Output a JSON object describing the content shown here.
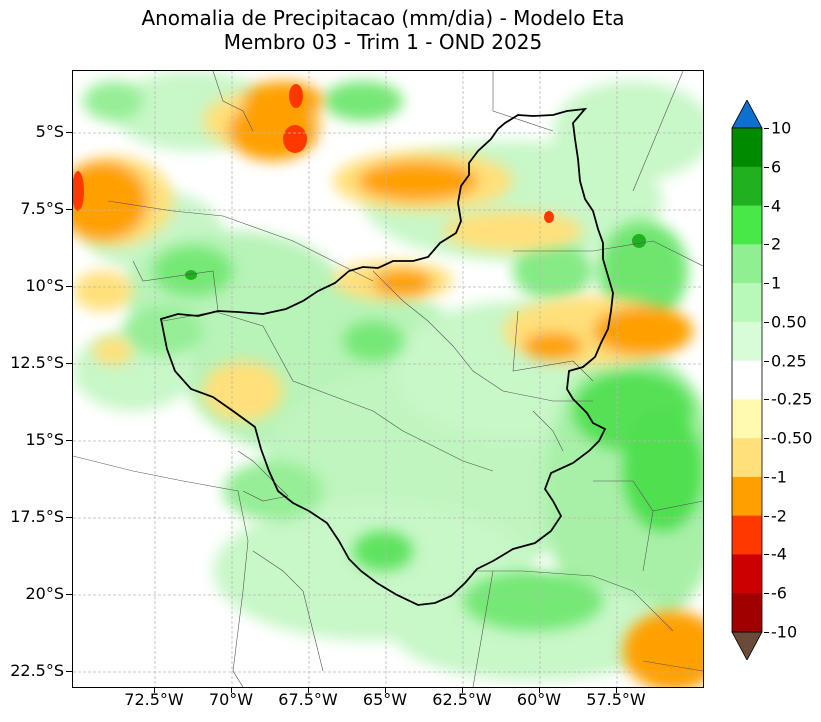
{
  "title": {
    "line1": "Anomalia de Precipitacao (mm/dia) - Modelo Eta",
    "line2": "Membro 03 - Trim 1 - OND 2025"
  },
  "axes": {
    "y_ticks": [
      "5°S",
      "7.5°S",
      "10°S",
      "12.5°S",
      "15°S",
      "17.5°S",
      "20°S",
      "22.5°S"
    ],
    "x_ticks": [
      "72.5°W",
      "70°W",
      "67.5°W",
      "65°W",
      "62.5°W",
      "60°W",
      "57.5°W"
    ]
  },
  "colorbar": {
    "labels": [
      "10",
      "6",
      "4",
      "2",
      "1",
      "0.50",
      "0.25",
      "-0.25",
      "-0.50",
      "-1",
      "-2",
      "-4",
      "-6",
      "-10"
    ],
    "colors": [
      "#0d6fd0",
      "#008a00",
      "#20b020",
      "#48e848",
      "#90ef90",
      "#b8f8b8",
      "#d8fcd8",
      "#ffffff",
      "#fffab0",
      "#ffe07a",
      "#ffa000",
      "#ff3800",
      "#cc0000",
      "#a00000",
      "#6b4a3a"
    ]
  },
  "chart_data": {
    "type": "heatmap",
    "variable": "Anomalia de Precipitacao (mm/dia)",
    "model": "Modelo Eta",
    "member": "Membro 03",
    "period": "Trim 1 - OND 2025",
    "lon_range": [
      "75.3°W",
      "55.1°W"
    ],
    "lat_range": [
      "3°S",
      "23°S"
    ],
    "levels": [
      -10,
      -6,
      -4,
      -2,
      -1,
      -0.5,
      -0.25,
      0.25,
      0.5,
      1,
      2,
      4,
      6,
      10
    ],
    "extend": "both"
  }
}
